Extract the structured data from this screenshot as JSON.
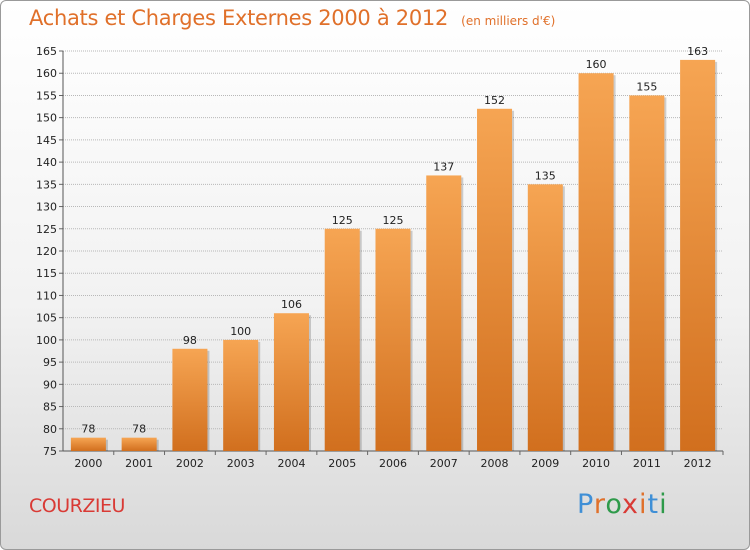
{
  "header": {
    "title": "Achats et Charges Externes 2000 à 2012",
    "subtitle": "(en milliers d'€)"
  },
  "footer": {
    "commune": "COURZIEU",
    "logo_text": "Proxiti",
    "logo_colors": [
      "#3f8fd6",
      "#e0702a",
      "#2e9a4a",
      "#d93a35",
      "#e0702a",
      "#3f8fd6",
      "#2e9a4a"
    ]
  },
  "colors": {
    "title": "#e0702a",
    "bar_top": "#f6a553",
    "bar_bottom": "#d16f1e",
    "grid": "#b8b8b8",
    "commune": "#d93a35"
  },
  "chart_data": {
    "type": "bar",
    "title": "Achats et Charges Externes 2000 à 2012",
    "subtitle": "(en milliers d'€)",
    "categories": [
      "2000",
      "2001",
      "2002",
      "2003",
      "2004",
      "2005",
      "2006",
      "2007",
      "2008",
      "2009",
      "2010",
      "2011",
      "2012"
    ],
    "values": [
      78,
      78,
      98,
      100,
      106,
      125,
      125,
      137,
      152,
      135,
      160,
      155,
      163
    ],
    "xlabel": "",
    "ylabel": "",
    "ylim": [
      75,
      165
    ],
    "yticks": [
      75,
      80,
      85,
      90,
      95,
      100,
      105,
      110,
      115,
      120,
      125,
      130,
      135,
      140,
      145,
      150,
      155,
      160,
      165
    ],
    "grid": true,
    "legend": "none"
  }
}
